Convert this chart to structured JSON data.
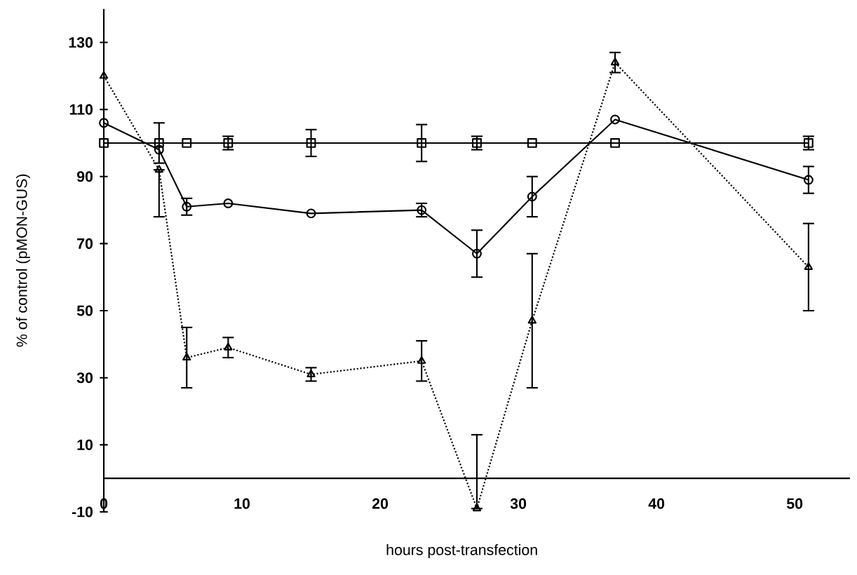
{
  "chart_data": {
    "type": "line",
    "xlabel": "hours post-transfection",
    "ylabel": "% of control (pMON-GUS)",
    "xlim": [
      0,
      54
    ],
    "ylim": [
      -10,
      140
    ],
    "xticks": [
      0,
      10,
      20,
      30,
      40,
      50
    ],
    "yticks": [
      -10,
      10,
      30,
      50,
      70,
      90,
      110,
      130
    ],
    "grid": false,
    "series": [
      {
        "color": "#000000",
        "marker": "square",
        "line_style": "solid",
        "x": [
          0,
          4,
          6,
          9,
          15,
          23,
          27,
          31,
          37,
          51
        ],
        "values": [
          100,
          100,
          100,
          100,
          100,
          100,
          100,
          100,
          100,
          100
        ],
        "errors": [
          null,
          6,
          null,
          2,
          4,
          5.5,
          2,
          null,
          null,
          2
        ]
      },
      {
        "color": "#000000",
        "marker": "circle",
        "line_style": "solid",
        "x": [
          0,
          4,
          6,
          9,
          15,
          23,
          27,
          31,
          37,
          51
        ],
        "values": [
          106,
          98,
          81,
          82,
          79,
          80,
          67,
          84,
          107,
          89
        ],
        "errors": [
          null,
          null,
          2.5,
          null,
          null,
          2,
          7,
          6,
          null,
          4
        ]
      },
      {
        "color": "#000000",
        "marker": "triangle",
        "line_style": "dotted",
        "x": [
          0,
          4,
          6,
          9,
          15,
          23,
          27,
          31,
          37,
          51
        ],
        "values": [
          120,
          92,
          36,
          39,
          31,
          35,
          -9,
          47,
          124,
          63
        ],
        "errors": [
          null,
          [
            78,
            92
          ],
          9,
          3,
          2,
          6,
          [
            -9,
            13
          ],
          20,
          3,
          13
        ]
      }
    ]
  }
}
